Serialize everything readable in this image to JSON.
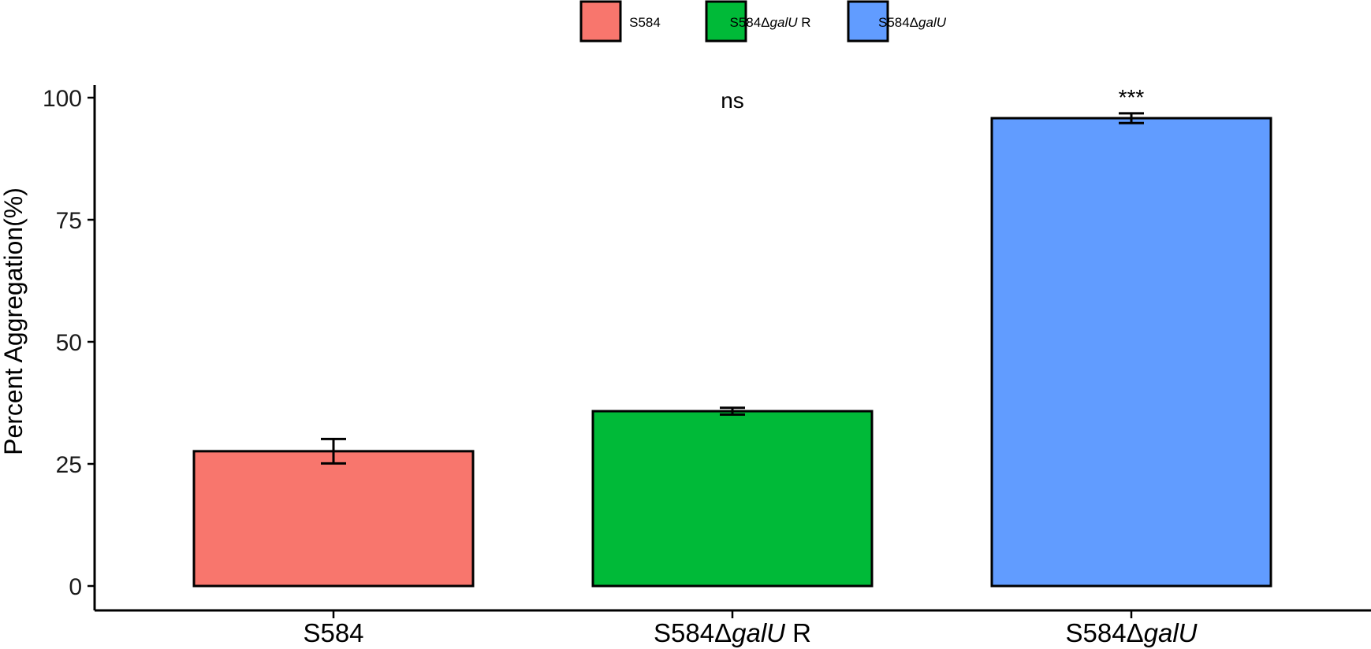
{
  "chart_data": {
    "type": "bar",
    "title": "",
    "xlabel": "",
    "ylabel": "Percent Aggregation(%)",
    "ylim": [
      0,
      100
    ],
    "yticks": [
      "0",
      "25",
      "50",
      "75",
      "100"
    ],
    "grid": false,
    "legend_position": "top",
    "categories": [
      {
        "base": "S584",
        "italic": "",
        "suffix": ""
      },
      {
        "base": "S584Δ",
        "italic": "galU",
        "suffix": " R"
      },
      {
        "base": "S584Δ",
        "italic": "galU",
        "suffix": ""
      }
    ],
    "values": [
      27.6,
      35.8,
      95.8
    ],
    "error": [
      2.5,
      0.7,
      1.0
    ],
    "colors": [
      "#F8766D",
      "#00BA38",
      "#619CFF"
    ],
    "annotations": [
      "",
      "ns",
      "***"
    ],
    "legend": [
      {
        "base": "S584",
        "italic": "",
        "suffix": "",
        "color": "#F8766D"
      },
      {
        "base": "S584Δ",
        "italic": "galU",
        "suffix": " R",
        "color": "#00BA38"
      },
      {
        "base": "S584Δ",
        "italic": "galU",
        "suffix": "",
        "color": "#619CFF"
      }
    ]
  }
}
